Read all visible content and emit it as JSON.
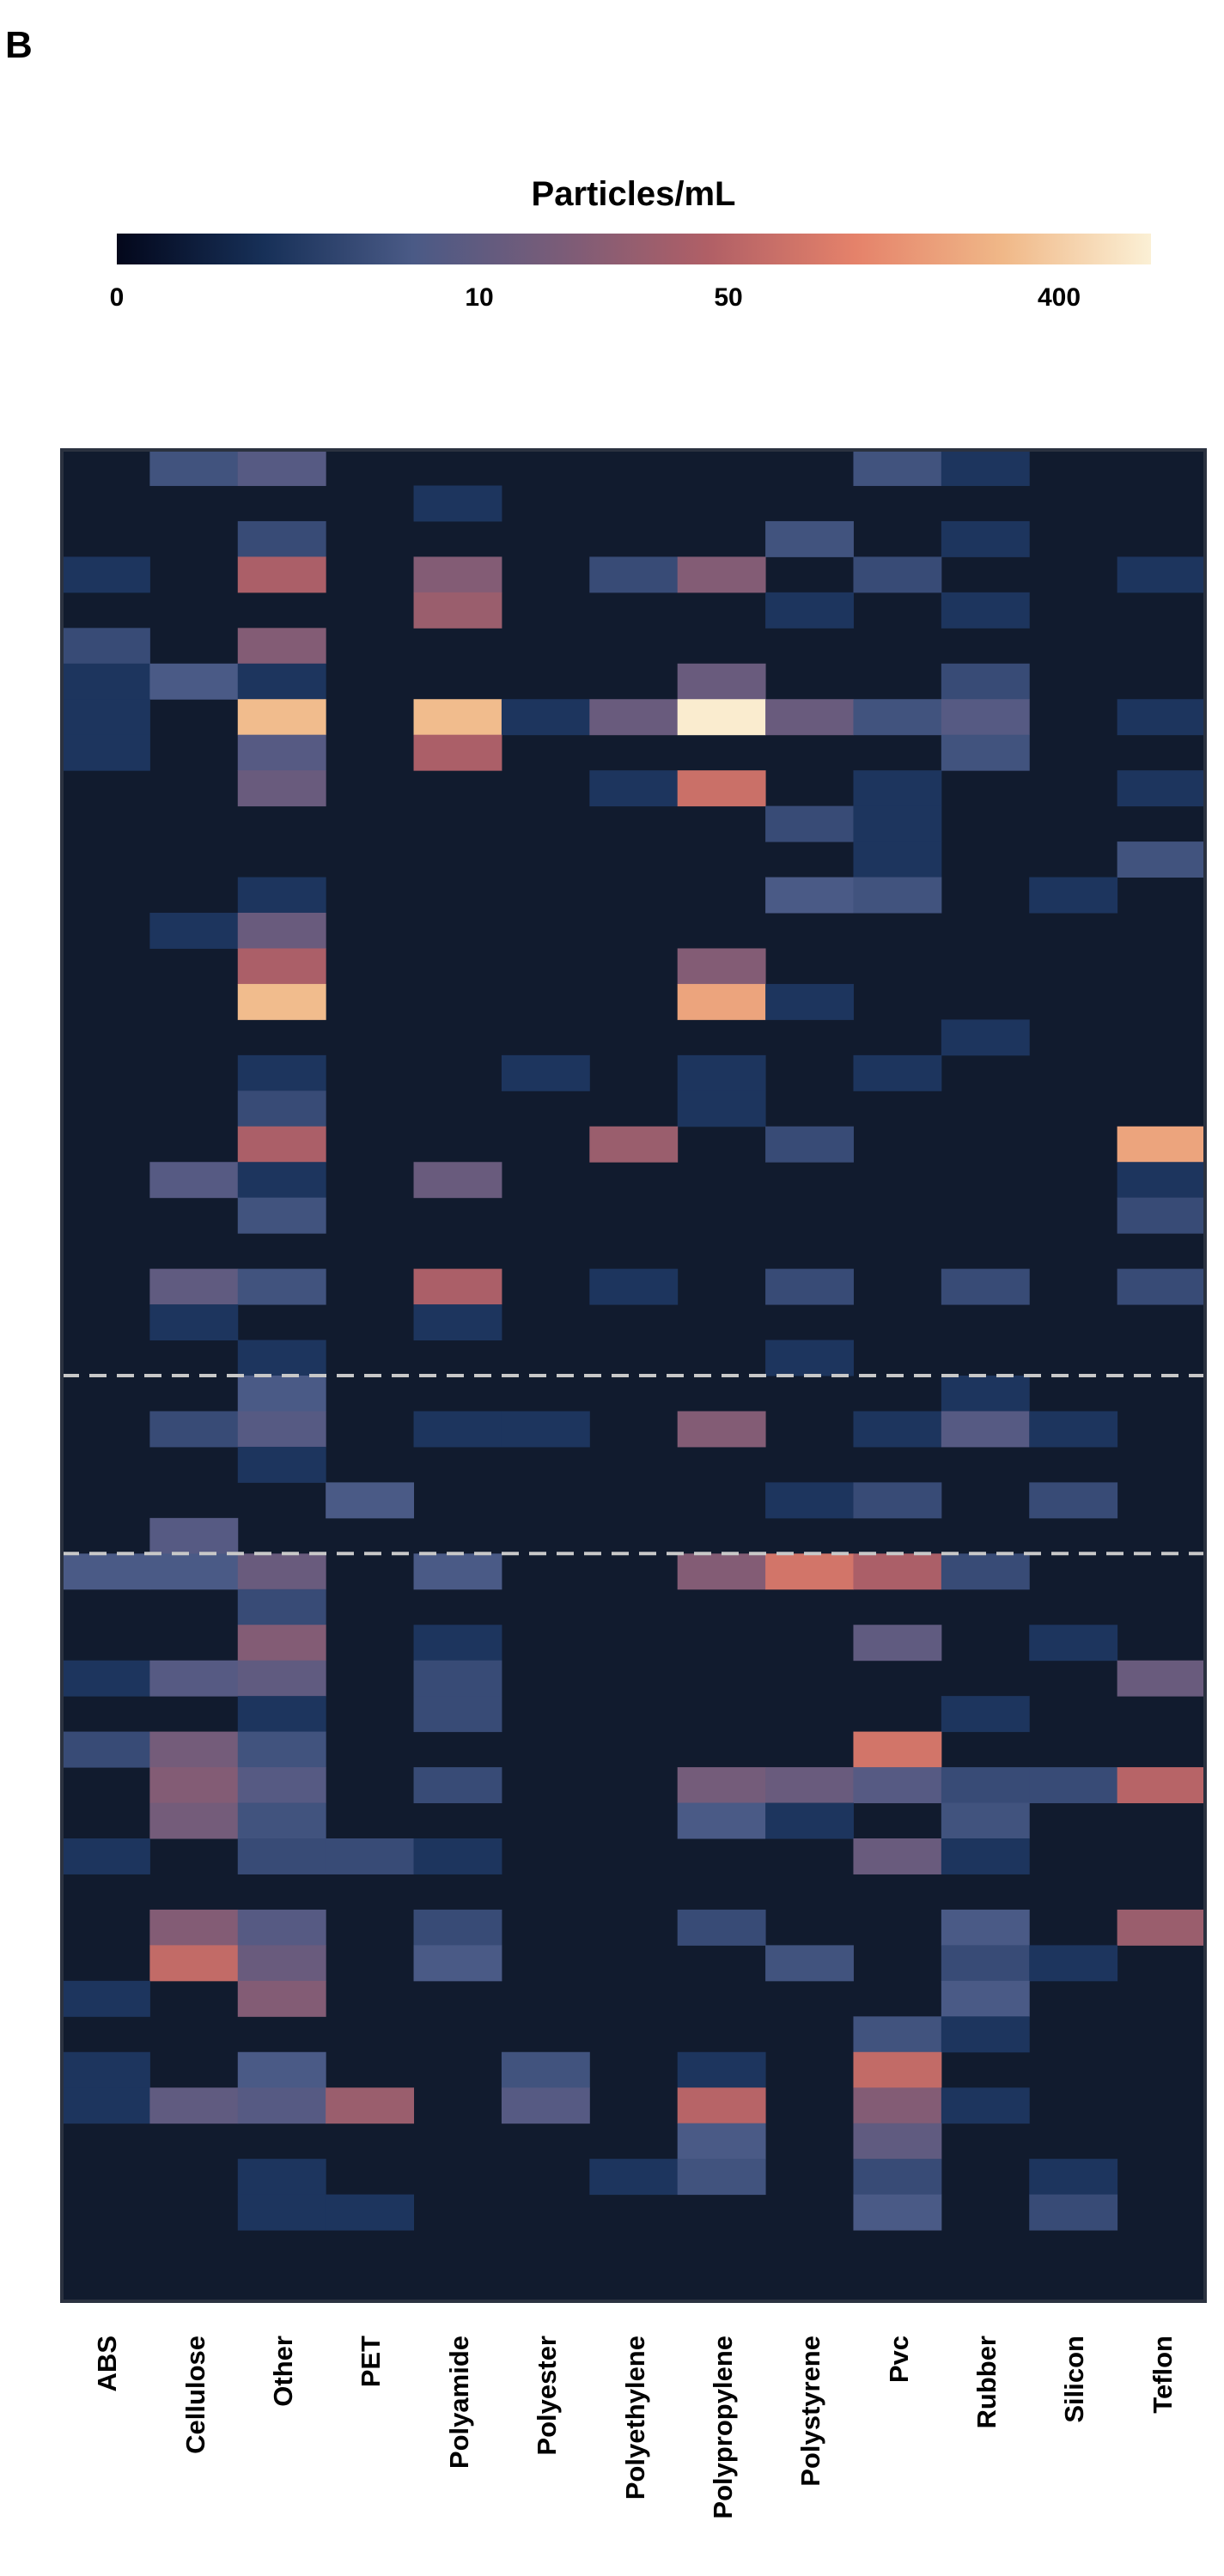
{
  "panel_label": "B",
  "colors": {
    "background_cell": "#111b2e",
    "border": "#2b3240",
    "divider": "#c8c8c8",
    "scale": [
      "#03071b",
      "#173058",
      "#4a5a86",
      "#7a5c78",
      "#b05f66",
      "#e5826a",
      "#f0b888",
      "#fbf0d5"
    ]
  },
  "chart_data": {
    "type": "heatmap",
    "colorbar": {
      "title": "Particles/mL",
      "tick_labels": [
        "0",
        "10",
        "50",
        "400"
      ],
      "tick_values": [
        0,
        10,
        50,
        400
      ],
      "max": 1000
    },
    "categories": [
      "ABS",
      "Cellulose",
      "Other",
      "PET",
      "Polyamide",
      "Polyester",
      "Polyethylene",
      "Polypropylene",
      "Polystyrene",
      "Pvc",
      "Rubber",
      "Silicon",
      "Teflon"
    ],
    "rows": 52,
    "divider_after_rows": [
      25,
      30
    ],
    "cells": [
      [
        0,
        1,
        5
      ],
      [
        0,
        2,
        8
      ],
      [
        0,
        9,
        5
      ],
      [
        0,
        10,
        2
      ],
      [
        1,
        4,
        2
      ],
      [
        2,
        2,
        4
      ],
      [
        2,
        8,
        5
      ],
      [
        2,
        10,
        2
      ],
      [
        3,
        0,
        2
      ],
      [
        3,
        2,
        40
      ],
      [
        3,
        4,
        20
      ],
      [
        3,
        6,
        4
      ],
      [
        3,
        7,
        20
      ],
      [
        3,
        9,
        4
      ],
      [
        3,
        12,
        2
      ],
      [
        4,
        4,
        30
      ],
      [
        4,
        8,
        2
      ],
      [
        4,
        10,
        2
      ],
      [
        5,
        0,
        4
      ],
      [
        5,
        2,
        20
      ],
      [
        6,
        0,
        2
      ],
      [
        6,
        1,
        6
      ],
      [
        6,
        2,
        2
      ],
      [
        6,
        7,
        12
      ],
      [
        6,
        10,
        4
      ],
      [
        7,
        0,
        2
      ],
      [
        7,
        2,
        300
      ],
      [
        7,
        4,
        300
      ],
      [
        7,
        5,
        2
      ],
      [
        7,
        6,
        12
      ],
      [
        7,
        7,
        900
      ],
      [
        7,
        8,
        12
      ],
      [
        7,
        9,
        5
      ],
      [
        7,
        10,
        8
      ],
      [
        7,
        12,
        2
      ],
      [
        8,
        0,
        2
      ],
      [
        8,
        2,
        8
      ],
      [
        8,
        4,
        40
      ],
      [
        8,
        10,
        5
      ],
      [
        9,
        2,
        12
      ],
      [
        9,
        6,
        2
      ],
      [
        9,
        7,
        70
      ],
      [
        9,
        9,
        2
      ],
      [
        9,
        12,
        2
      ],
      [
        10,
        8,
        4
      ],
      [
        10,
        9,
        2
      ],
      [
        11,
        9,
        2
      ],
      [
        11,
        12,
        5
      ],
      [
        12,
        2,
        2
      ],
      [
        12,
        8,
        6
      ],
      [
        12,
        9,
        5
      ],
      [
        12,
        11,
        2
      ],
      [
        13,
        1,
        2
      ],
      [
        13,
        2,
        12
      ],
      [
        14,
        2,
        40
      ],
      [
        14,
        7,
        20
      ],
      [
        15,
        2,
        300
      ],
      [
        15,
        7,
        200
      ],
      [
        15,
        8,
        2
      ],
      [
        16,
        10,
        2
      ],
      [
        17,
        2,
        2
      ],
      [
        17,
        5,
        2
      ],
      [
        17,
        7,
        2
      ],
      [
        17,
        9,
        2
      ],
      [
        18,
        2,
        4
      ],
      [
        18,
        7,
        2
      ],
      [
        19,
        2,
        40
      ],
      [
        19,
        6,
        30
      ],
      [
        19,
        8,
        4
      ],
      [
        19,
        12,
        200
      ],
      [
        20,
        1,
        8
      ],
      [
        20,
        2,
        2
      ],
      [
        20,
        4,
        12
      ],
      [
        20,
        12,
        2
      ],
      [
        21,
        2,
        5
      ],
      [
        21,
        12,
        4
      ],
      [
        23,
        1,
        10
      ],
      [
        23,
        2,
        5
      ],
      [
        23,
        4,
        40
      ],
      [
        23,
        6,
        2
      ],
      [
        23,
        8,
        4
      ],
      [
        23,
        10,
        4
      ],
      [
        23,
        12,
        4
      ],
      [
        24,
        1,
        2
      ],
      [
        24,
        4,
        2
      ],
      [
        25,
        2,
        2
      ],
      [
        25,
        8,
        2
      ],
      [
        26,
        2,
        6
      ],
      [
        26,
        10,
        2
      ],
      [
        27,
        1,
        4
      ],
      [
        27,
        2,
        8
      ],
      [
        27,
        4,
        2
      ],
      [
        27,
        5,
        2
      ],
      [
        27,
        7,
        20
      ],
      [
        27,
        9,
        2
      ],
      [
        27,
        10,
        8
      ],
      [
        27,
        11,
        2
      ],
      [
        28,
        2,
        2
      ],
      [
        29,
        3,
        6
      ],
      [
        29,
        8,
        2
      ],
      [
        29,
        9,
        4
      ],
      [
        29,
        11,
        4
      ],
      [
        30,
        1,
        8
      ],
      [
        31,
        0,
        6
      ],
      [
        31,
        1,
        6
      ],
      [
        31,
        2,
        12
      ],
      [
        31,
        4,
        6
      ],
      [
        31,
        7,
        20
      ],
      [
        31,
        8,
        80
      ],
      [
        31,
        9,
        40
      ],
      [
        31,
        10,
        4
      ],
      [
        32,
        2,
        4
      ],
      [
        33,
        2,
        20
      ],
      [
        33,
        4,
        2
      ],
      [
        33,
        9,
        10
      ],
      [
        33,
        11,
        2
      ],
      [
        34,
        0,
        2
      ],
      [
        34,
        1,
        8
      ],
      [
        34,
        2,
        10
      ],
      [
        34,
        4,
        4
      ],
      [
        34,
        12,
        12
      ],
      [
        35,
        2,
        2
      ],
      [
        35,
        4,
        4
      ],
      [
        35,
        10,
        2
      ],
      [
        36,
        0,
        4
      ],
      [
        36,
        1,
        15
      ],
      [
        36,
        2,
        5
      ],
      [
        36,
        9,
        80
      ],
      [
        37,
        1,
        20
      ],
      [
        37,
        2,
        8
      ],
      [
        37,
        4,
        4
      ],
      [
        37,
        7,
        15
      ],
      [
        37,
        8,
        12
      ],
      [
        37,
        9,
        8
      ],
      [
        37,
        10,
        4
      ],
      [
        37,
        11,
        4
      ],
      [
        37,
        12,
        50
      ],
      [
        38,
        1,
        15
      ],
      [
        38,
        2,
        5
      ],
      [
        38,
        7,
        6
      ],
      [
        38,
        8,
        2
      ],
      [
        38,
        10,
        5
      ],
      [
        39,
        0,
        2
      ],
      [
        39,
        2,
        4
      ],
      [
        39,
        3,
        4
      ],
      [
        39,
        4,
        2
      ],
      [
        39,
        9,
        12
      ],
      [
        39,
        10,
        2
      ],
      [
        41,
        1,
        20
      ],
      [
        41,
        2,
        8
      ],
      [
        41,
        4,
        4
      ],
      [
        41,
        7,
        4
      ],
      [
        41,
        10,
        6
      ],
      [
        41,
        12,
        30
      ],
      [
        42,
        1,
        60
      ],
      [
        42,
        2,
        12
      ],
      [
        42,
        4,
        6
      ],
      [
        42,
        8,
        5
      ],
      [
        42,
        10,
        4
      ],
      [
        42,
        11,
        2
      ],
      [
        43,
        0,
        2
      ],
      [
        43,
        2,
        20
      ],
      [
        43,
        10,
        6
      ],
      [
        44,
        9,
        5
      ],
      [
        44,
        10,
        2
      ],
      [
        45,
        0,
        2
      ],
      [
        45,
        2,
        6
      ],
      [
        45,
        5,
        5
      ],
      [
        45,
        7,
        2
      ],
      [
        45,
        9,
        60
      ],
      [
        46,
        0,
        2
      ],
      [
        46,
        1,
        10
      ],
      [
        46,
        2,
        8
      ],
      [
        46,
        3,
        30
      ],
      [
        46,
        5,
        8
      ],
      [
        46,
        7,
        50
      ],
      [
        46,
        9,
        20
      ],
      [
        46,
        10,
        2
      ],
      [
        47,
        7,
        6
      ],
      [
        47,
        9,
        10
      ],
      [
        48,
        2,
        2
      ],
      [
        48,
        6,
        2
      ],
      [
        48,
        7,
        5
      ],
      [
        48,
        9,
        4
      ],
      [
        48,
        11,
        2
      ],
      [
        49,
        2,
        2
      ],
      [
        49,
        3,
        2
      ],
      [
        49,
        9,
        6
      ],
      [
        49,
        11,
        4
      ]
    ]
  }
}
